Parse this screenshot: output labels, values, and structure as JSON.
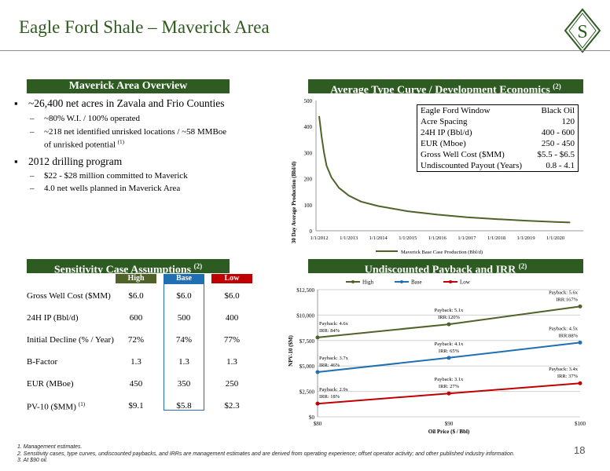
{
  "slide": {
    "title": "Eagle Ford Shale – Maverick Area",
    "logo_letter": "S",
    "page_number": "18"
  },
  "overview": {
    "heading": "Maverick Area Overview",
    "bullets": [
      "~26,400 net acres in Zavala and Frio Counties",
      "~80% W.I. / 100% operated",
      "~218 net identified unrisked locations / ~58 MMBoe of unrisked potential",
      "(1)",
      "2012 drilling program",
      "$22 - $28 million committed to Maverick",
      "4.0 net wells planned in Maverick Area"
    ]
  },
  "type_curve": {
    "heading": "Average Type Curve / Development Economics",
    "heading_note": "(2)",
    "ylabel": "30 Day Average Production (Bbl/d)",
    "legend": "Maverick Base Case Production (Bbl/d)",
    "yticks": [
      "0",
      "100",
      "200",
      "300",
      "400",
      "500"
    ],
    "xticks": [
      "1/1/2012",
      "1/1/2013",
      "1/1/2014",
      "1/1/2015",
      "1/1/2016",
      "1/1/2017",
      "1/1/2018",
      "1/1/2019",
      "1/1/2020"
    ],
    "table": [
      [
        "Eagle Ford Window",
        "Black Oil"
      ],
      [
        "Acre Spacing",
        "120"
      ],
      [
        "24H IP (Bbl/d)",
        "400 - 600"
      ],
      [
        "EUR (Mboe)",
        "250 - 450"
      ],
      [
        "Gross Well Cost ($MM)",
        "$5.5 - $6.5"
      ],
      [
        "Undiscounted Payout (Years)",
        "0.8 - 4.1"
      ]
    ]
  },
  "sensitivity": {
    "heading": "Sensitivity Case Assumptions",
    "heading_note": "(2)",
    "col_high": "High",
    "col_base": "Base",
    "col_low": "Low",
    "rows": [
      {
        "label": "Gross Well Cost ($MM)",
        "note": "",
        "high": "$6.0",
        "base": "$6.0",
        "low": "$6.0"
      },
      {
        "label": "24H IP (Bbl/d)",
        "note": "",
        "high": "600",
        "base": "500",
        "low": "400"
      },
      {
        "label": "Initial Decline (% / Year)",
        "note": "",
        "high": "72%",
        "base": "74%",
        "low": "77%"
      },
      {
        "label": "B-Factor",
        "note": "",
        "high": "1.3",
        "base": "1.3",
        "low": "1.3"
      },
      {
        "label": "EUR (MBoe)",
        "note": "",
        "high": "450",
        "base": "350",
        "low": "250"
      },
      {
        "label": "PV-10 ($MM)",
        "note": "(1)",
        "high": "$9.1",
        "base": "$5.8",
        "low": "$2.3"
      }
    ]
  },
  "payback": {
    "heading": "Undiscounted Payback and IRR",
    "heading_note": "(2)",
    "ylabel": "NPV-10 ($M)",
    "xlabel": "Oil Price ($ / Bbl)"
  },
  "chart_data": [
    {
      "type": "line",
      "title": "Average Type Curve / Development Economics",
      "ylabel": "30 Day Average Production (Bbl/d)",
      "ylim": [
        0,
        500
      ],
      "x_range": [
        "1/1/2012",
        "1/1/2020"
      ],
      "series": [
        {
          "name": "Maverick Base Case Production (Bbl/d)",
          "x": [
            "2012-01",
            "2012-02",
            "2012-03",
            "2012-04",
            "2012-06",
            "2012-09",
            "2013-01",
            "2013-06",
            "2014-01",
            "2015-01",
            "2016-01",
            "2017-01",
            "2018-01",
            "2019-01",
            "2020-01",
            "2020-07"
          ],
          "y": [
            440,
            360,
            300,
            250,
            205,
            165,
            135,
            112,
            95,
            75,
            62,
            52,
            45,
            39,
            34,
            32
          ]
        }
      ]
    },
    {
      "type": "line",
      "title": "Undiscounted Payback and IRR",
      "xlabel": "Oil Price ($ / Bbl)",
      "ylabel": "NPV-10 ($M)",
      "ylim": [
        0,
        12500
      ],
      "categories": [
        "$80",
        "$90",
        "$100"
      ],
      "y_tick_labels": [
        "$0",
        "$2,500",
        "$5,000",
        "$7,500",
        "$10,000",
        "$12,500"
      ],
      "grid": true,
      "legend": "top",
      "series": [
        {
          "name": "High",
          "color": "#4f6228",
          "values": [
            7800,
            9100,
            10850
          ],
          "labels": [
            [
              "Payback:  4.6x",
              "IRR:  84%"
            ],
            [
              "Payback:  5.1x",
              "IRR:120%"
            ],
            [
              "Payback:  5.6x",
              "IRR:167%"
            ]
          ]
        },
        {
          "name": "Base",
          "color": "#1f6fb2",
          "values": [
            4400,
            5800,
            7300
          ],
          "labels": [
            [
              "Payback:  3.7x",
              "IRR:  46%"
            ],
            [
              "Payback:  4.1x",
              "IRR:  65%"
            ],
            [
              "Payback:  4.5x",
              "IRR:88%"
            ]
          ]
        },
        {
          "name": "Low",
          "color": "#c00000",
          "values": [
            1300,
            2300,
            3300
          ],
          "labels": [
            [
              "Payback:  2.9x",
              "IRR:  18%"
            ],
            [
              "Payback:  3.1x",
              "IRR:  27%"
            ],
            [
              "Payback:  3.4x",
              "IRR:  37%"
            ]
          ]
        }
      ]
    }
  ],
  "footnotes": [
    "1.   Management estimates.",
    "2.   Sensitivity cases, type curves, undiscounted paybacks, and IRRs are management estimates and are derived from operating experience; offset operator activity; and other published industry information.",
    "3.   At $90 oil."
  ]
}
